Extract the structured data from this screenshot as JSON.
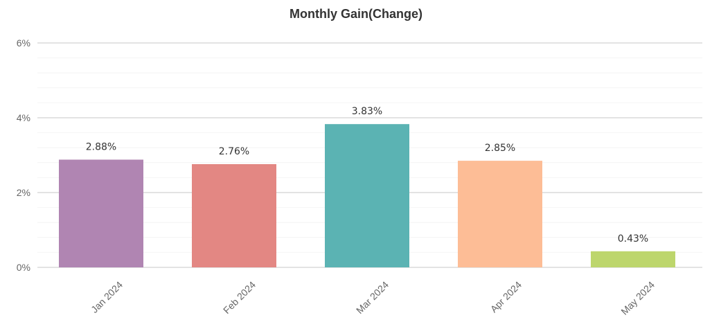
{
  "chart_data": {
    "type": "bar",
    "title": "Monthly Gain(Change)",
    "categories": [
      "Jan 2024",
      "Feb 2024",
      "Mar 2024",
      "Apr 2024",
      "May 2024"
    ],
    "values": [
      2.88,
      2.76,
      3.83,
      2.85,
      0.43
    ],
    "value_labels": [
      "2.88%",
      "2.76%",
      "3.83%",
      "2.85%",
      "0.43%"
    ],
    "colors": [
      "#b085b2",
      "#e38783",
      "#5bb3b3",
      "#fdbd96",
      "#bdd66c"
    ],
    "ylim": [
      0,
      6
    ],
    "yticks": [
      0,
      2,
      4,
      6
    ],
    "ytick_labels": [
      "0%",
      "2%",
      "4%",
      "6%"
    ],
    "minor_grid_step": 0.4,
    "grid": true,
    "xlabel": "",
    "ylabel": ""
  }
}
